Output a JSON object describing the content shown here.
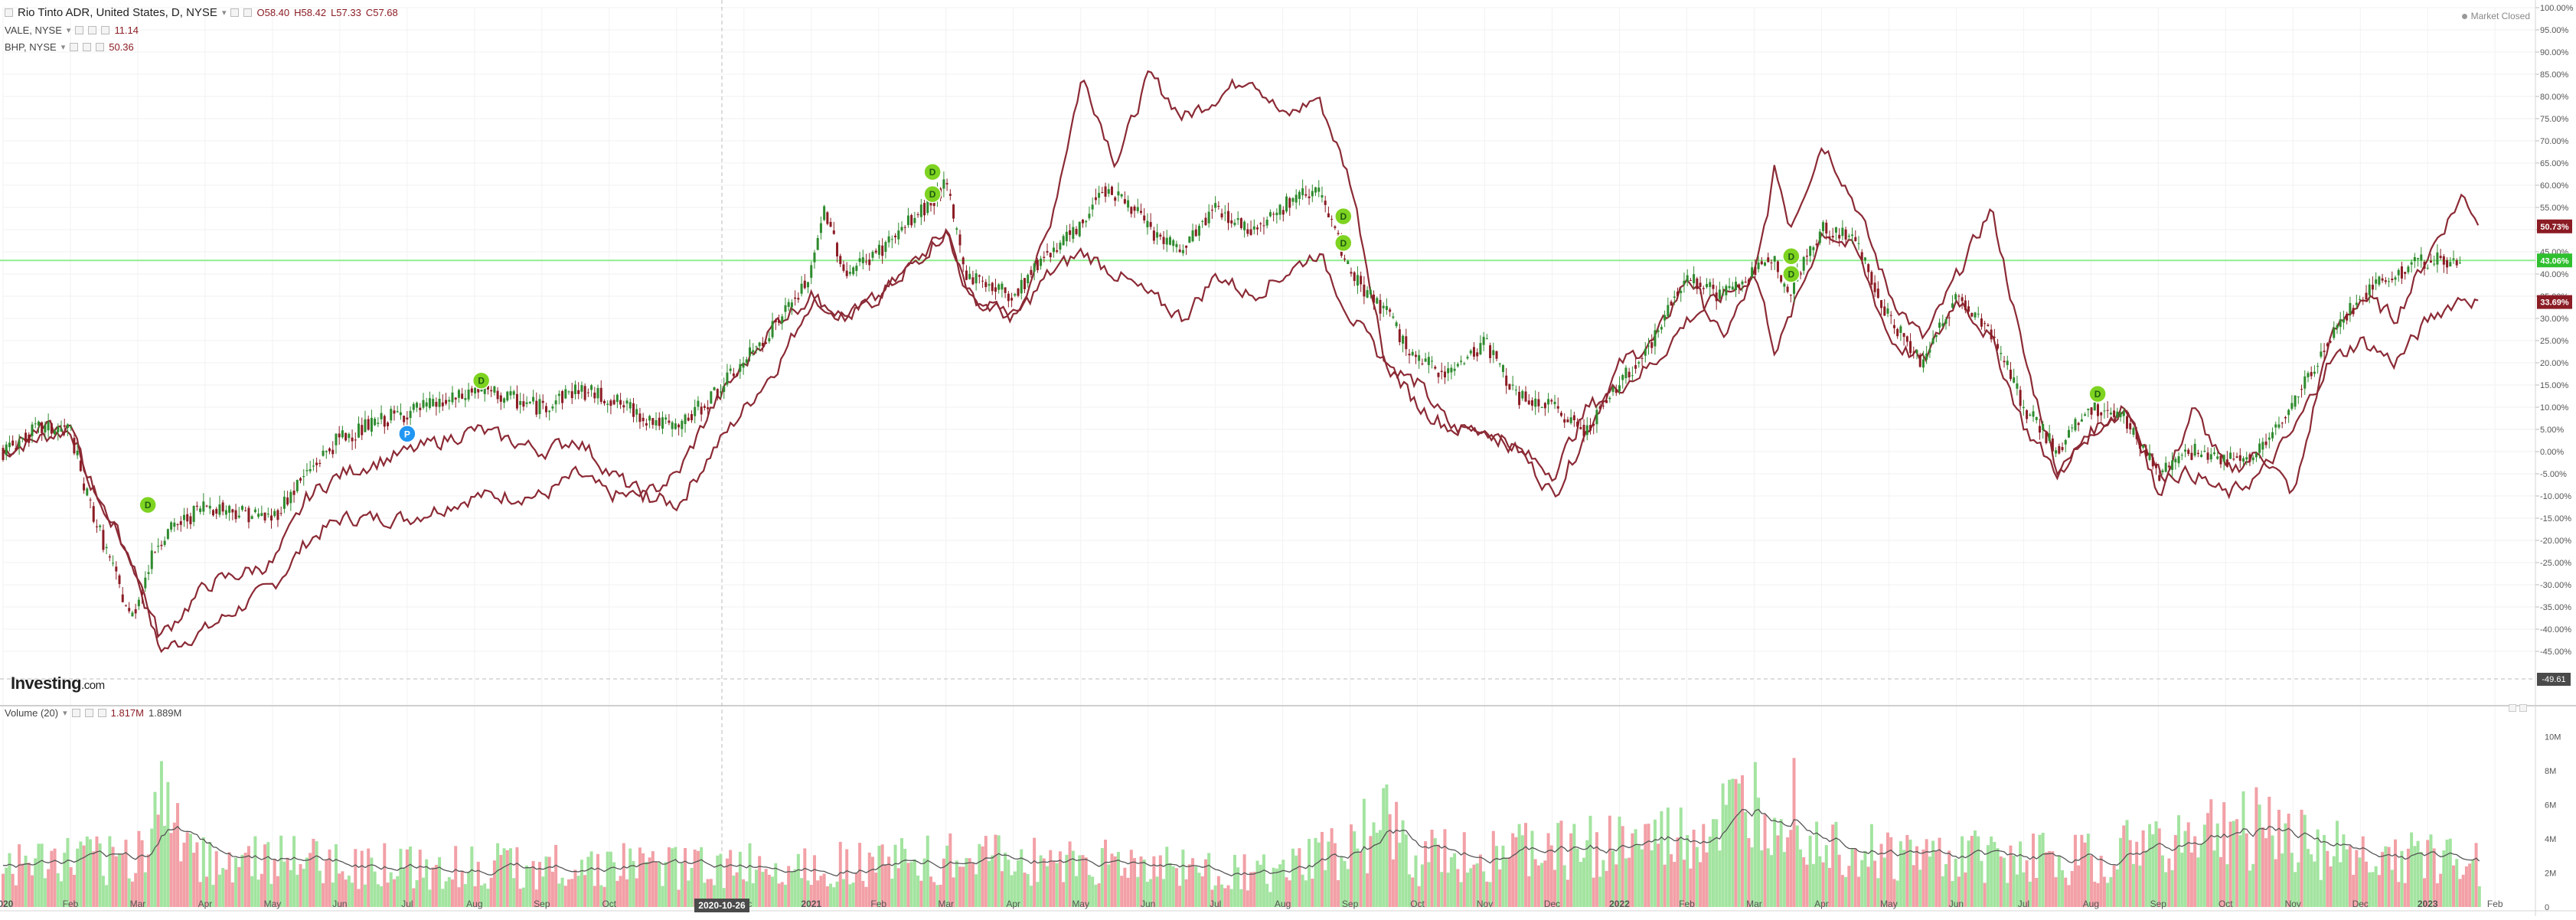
{
  "legend": {
    "main": {
      "symbol": "Rio Tinto ADR, United States, D, NYSE",
      "open": "O58.40",
      "high": "H58.42",
      "low": "L57.33",
      "close": "C57.68"
    },
    "vale": {
      "symbol": "VALE, NYSE",
      "value": "11.14"
    },
    "bhp": {
      "symbol": "BHP, NYSE",
      "value": "50.36"
    },
    "volume": {
      "label": "Volume (20)",
      "value1": "1.817M",
      "value2": "1.889M"
    }
  },
  "status": {
    "market": "Market Closed"
  },
  "brand": {
    "name": "Investing",
    "suffix": ".com"
  },
  "crosshair": {
    "x_label": "2020-10-26",
    "y_label": "-49.61"
  },
  "badges": [
    {
      "label": "50.73%",
      "color": "#8b1c24"
    },
    {
      "label": "43.06%",
      "color": "#2fbf2f"
    },
    {
      "label": "33.69%",
      "color": "#8b1c24"
    }
  ],
  "colors": {
    "up": "#2e8b2e",
    "down": "#8b1c24",
    "compare": "#8b2a35",
    "reference": "#90ee90",
    "vol_up": "#a3e4a0",
    "vol_down": "#f2a0a6"
  },
  "chart_data": {
    "type": "line",
    "x_axis": [
      "2020",
      "Feb",
      "Mar",
      "Apr",
      "May",
      "Jun",
      "Jul",
      "Aug",
      "Sep",
      "Oct",
      "Nov",
      "Dec",
      "2021",
      "Feb",
      "Mar",
      "Apr",
      "May",
      "Jun",
      "Jul",
      "Aug",
      "Sep",
      "Oct",
      "Nov",
      "Dec",
      "2022",
      "Feb",
      "Mar",
      "Apr",
      "May",
      "Jun",
      "Jul",
      "Aug",
      "Sep",
      "Oct",
      "Nov",
      "Dec",
      "2023",
      "Feb"
    ],
    "x_axis_display": [
      "2020",
      "Feb",
      "Mar",
      "Apr",
      "May",
      "Jun",
      "Jul",
      "Aug",
      "Sep",
      "Oct",
      "",
      "Dec",
      "2021",
      "Feb",
      "Mar",
      "Apr",
      "May",
      "Jun",
      "Jul",
      "Aug",
      "Sep",
      "Oct",
      "Nov",
      "Dec",
      "2022",
      "Feb",
      "Mar",
      "Apr",
      "May",
      "Jun",
      "Jul",
      "Aug",
      "Sep",
      "Oct",
      "Nov",
      "Dec",
      "2023",
      "Feb"
    ],
    "y_axis": {
      "unit": "%",
      "min": -50,
      "max": 100,
      "step": 5,
      "ticks": [
        "100.00%",
        "95.00%",
        "90.00%",
        "85.00%",
        "80.00%",
        "75.00%",
        "70.00%",
        "65.00%",
        "60.00%",
        "55.00%",
        "50.00%",
        "45.00%",
        "40.00%",
        "35.00%",
        "30.00%",
        "25.00%",
        "20.00%",
        "15.00%",
        "10.00%",
        "5.00%",
        "0.00%",
        "-5.00%",
        "-10.00%",
        "-15.00%",
        "-20.00%",
        "-25.00%",
        "-30.00%",
        "-35.00%",
        "-40.00%",
        "-45.00%"
      ]
    },
    "volume_axis": {
      "ticks": [
        "10M",
        "8M",
        "6M",
        "4M",
        "2M",
        "0"
      ]
    },
    "reference_line": 43.06,
    "series": [
      {
        "name": "Rio Tinto ADR",
        "style": "candles",
        "points": [
          [
            0,
            0
          ],
          [
            0.5,
            5
          ],
          [
            1,
            5
          ],
          [
            1.2,
            -8
          ],
          [
            1.9,
            -38
          ],
          [
            2.3,
            -20
          ],
          [
            3,
            -12
          ],
          [
            4,
            -15
          ],
          [
            4.5,
            -5
          ],
          [
            5,
            3
          ],
          [
            5.8,
            8
          ],
          [
            6.8,
            12
          ],
          [
            7,
            14
          ],
          [
            8,
            10
          ],
          [
            8.5,
            14
          ],
          [
            9,
            12
          ],
          [
            9.5,
            8
          ],
          [
            10,
            5
          ],
          [
            10.5,
            12
          ],
          [
            11,
            20
          ],
          [
            11.8,
            35
          ],
          [
            12,
            40
          ],
          [
            12.2,
            55
          ],
          [
            12.5,
            40
          ],
          [
            13,
            45
          ],
          [
            13.7,
            55
          ],
          [
            14,
            60
          ],
          [
            14.3,
            40
          ],
          [
            15,
            35
          ],
          [
            15.5,
            45
          ],
          [
            16,
            50
          ],
          [
            16.3,
            60
          ],
          [
            16.8,
            55
          ],
          [
            17,
            50
          ],
          [
            17.5,
            45
          ],
          [
            18,
            55
          ],
          [
            18.5,
            50
          ],
          [
            19,
            55
          ],
          [
            19.5,
            60
          ],
          [
            19.7,
            52
          ],
          [
            20,
            40
          ],
          [
            20.5,
            32
          ],
          [
            21,
            20
          ],
          [
            21.5,
            18
          ],
          [
            22,
            25
          ],
          [
            22.5,
            12
          ],
          [
            23,
            10
          ],
          [
            23.5,
            5
          ],
          [
            24,
            15
          ],
          [
            24.5,
            25
          ],
          [
            25,
            40
          ],
          [
            25.5,
            35
          ],
          [
            26,
            40
          ],
          [
            26.3,
            45
          ],
          [
            26.5,
            35
          ],
          [
            27,
            50
          ],
          [
            27.5,
            48
          ],
          [
            28,
            30
          ],
          [
            28.5,
            20
          ],
          [
            29,
            35
          ],
          [
            29.5,
            28
          ],
          [
            30,
            10
          ],
          [
            30.5,
            0
          ],
          [
            31,
            10
          ],
          [
            31.5,
            8
          ],
          [
            32,
            -5
          ],
          [
            32.5,
            0
          ],
          [
            33,
            -2
          ],
          [
            33.5,
            0
          ],
          [
            34,
            10
          ],
          [
            34.5,
            25
          ],
          [
            35,
            35
          ],
          [
            35.5,
            40
          ],
          [
            36,
            43
          ],
          [
            36.5,
            43
          ]
        ]
      },
      {
        "name": "VALE",
        "style": "line",
        "points": [
          [
            0,
            0
          ],
          [
            0.5,
            3
          ],
          [
            1,
            5
          ],
          [
            1.2,
            -5
          ],
          [
            1.9,
            -25
          ],
          [
            2.3,
            -45
          ],
          [
            3,
            -40
          ],
          [
            4,
            -30
          ],
          [
            4.5,
            -20
          ],
          [
            5,
            -15
          ],
          [
            6,
            -15
          ],
          [
            7,
            -10
          ],
          [
            8,
            -10
          ],
          [
            8.5,
            -5
          ],
          [
            9,
            -10
          ],
          [
            9.5,
            -10
          ],
          [
            10,
            -12
          ],
          [
            10.5,
            0
          ],
          [
            11,
            10
          ],
          [
            11.5,
            20
          ],
          [
            12,
            35
          ],
          [
            12.5,
            30
          ],
          [
            13,
            35
          ],
          [
            14,
            50
          ],
          [
            14.3,
            35
          ],
          [
            15,
            30
          ],
          [
            15.5,
            50
          ],
          [
            16,
            85
          ],
          [
            16.5,
            65
          ],
          [
            17,
            85
          ],
          [
            17.5,
            75
          ],
          [
            18,
            80
          ],
          [
            18.5,
            85
          ],
          [
            19,
            75
          ],
          [
            19.5,
            80
          ],
          [
            20,
            60
          ],
          [
            20.5,
            20
          ],
          [
            21,
            15
          ],
          [
            21.5,
            5
          ],
          [
            22,
            5
          ],
          [
            22.5,
            0
          ],
          [
            23,
            -10
          ],
          [
            23.5,
            5
          ],
          [
            24,
            20
          ],
          [
            24.5,
            25
          ],
          [
            25,
            40
          ],
          [
            25.5,
            25
          ],
          [
            26,
            40
          ],
          [
            26.3,
            65
          ],
          [
            26.5,
            50
          ],
          [
            27,
            70
          ],
          [
            27.5,
            55
          ],
          [
            28,
            35
          ],
          [
            28.5,
            25
          ],
          [
            29,
            40
          ],
          [
            29.5,
            55
          ],
          [
            30,
            20
          ],
          [
            30.5,
            -5
          ],
          [
            31,
            5
          ],
          [
            31.5,
            10
          ],
          [
            32,
            -10
          ],
          [
            32.5,
            10
          ],
          [
            33,
            -5
          ],
          [
            33.5,
            0
          ],
          [
            34,
            -10
          ],
          [
            34.5,
            25
          ],
          [
            35,
            35
          ],
          [
            35.5,
            30
          ],
          [
            36,
            45
          ],
          [
            36.5,
            58
          ],
          [
            36.8,
            50
          ]
        ]
      },
      {
        "name": "BHP",
        "style": "line",
        "points": [
          [
            0,
            0
          ],
          [
            0.5,
            5
          ],
          [
            1,
            5
          ],
          [
            1.2,
            -5
          ],
          [
            1.9,
            -25
          ],
          [
            2.3,
            -42
          ],
          [
            3,
            -30
          ],
          [
            4,
            -25
          ],
          [
            4.5,
            -10
          ],
          [
            5,
            -5
          ],
          [
            6,
            0
          ],
          [
            7,
            5
          ],
          [
            8,
            0
          ],
          [
            8.5,
            3
          ],
          [
            9,
            -5
          ],
          [
            9.5,
            -10
          ],
          [
            10,
            -5
          ],
          [
            10.5,
            10
          ],
          [
            11,
            20
          ],
          [
            11.5,
            30
          ],
          [
            12,
            35
          ],
          [
            12.5,
            30
          ],
          [
            13,
            35
          ],
          [
            14,
            50
          ],
          [
            14.3,
            35
          ],
          [
            15,
            30
          ],
          [
            15.5,
            40
          ],
          [
            16,
            45
          ],
          [
            16.5,
            40
          ],
          [
            17,
            35
          ],
          [
            17.5,
            30
          ],
          [
            18,
            40
          ],
          [
            18.5,
            35
          ],
          [
            19,
            40
          ],
          [
            19.5,
            45
          ],
          [
            20,
            30
          ],
          [
            20.5,
            20
          ],
          [
            21,
            10
          ],
          [
            21.5,
            5
          ],
          [
            22,
            5
          ],
          [
            22.5,
            0
          ],
          [
            23,
            -5
          ],
          [
            23.5,
            10
          ],
          [
            24,
            15
          ],
          [
            24.5,
            20
          ],
          [
            25,
            30
          ],
          [
            25.5,
            35
          ],
          [
            26,
            40
          ],
          [
            26.3,
            22
          ],
          [
            26.5,
            30
          ],
          [
            27,
            50
          ],
          [
            27.5,
            45
          ],
          [
            28,
            25
          ],
          [
            28.5,
            20
          ],
          [
            29,
            35
          ],
          [
            29.5,
            25
          ],
          [
            30,
            5
          ],
          [
            30.5,
            -5
          ],
          [
            31,
            5
          ],
          [
            31.5,
            10
          ],
          [
            32,
            -5
          ],
          [
            32.5,
            -5
          ],
          [
            33,
            -10
          ],
          [
            33.5,
            -5
          ],
          [
            34,
            5
          ],
          [
            34.5,
            20
          ],
          [
            35,
            25
          ],
          [
            35.5,
            20
          ],
          [
            36,
            30
          ],
          [
            36.5,
            35
          ],
          [
            36.8,
            33
          ]
        ]
      }
    ],
    "events": [
      {
        "label": "D",
        "x": 2.15,
        "y": -12
      },
      {
        "label": "P",
        "x": 6.0,
        "y": 4
      },
      {
        "label": "D",
        "x": 7.1,
        "y": 16
      },
      {
        "label": "D",
        "x": 13.8,
        "y": 63
      },
      {
        "label": "D",
        "x": 13.8,
        "y": 58
      },
      {
        "label": "D",
        "x": 19.9,
        "y": 53
      },
      {
        "label": "D",
        "x": 19.9,
        "y": 47
      },
      {
        "label": "D",
        "x": 26.55,
        "y": 44
      },
      {
        "label": "D",
        "x": 26.55,
        "y": 40
      },
      {
        "label": "D",
        "x": 31.1,
        "y": 13
      }
    ]
  }
}
